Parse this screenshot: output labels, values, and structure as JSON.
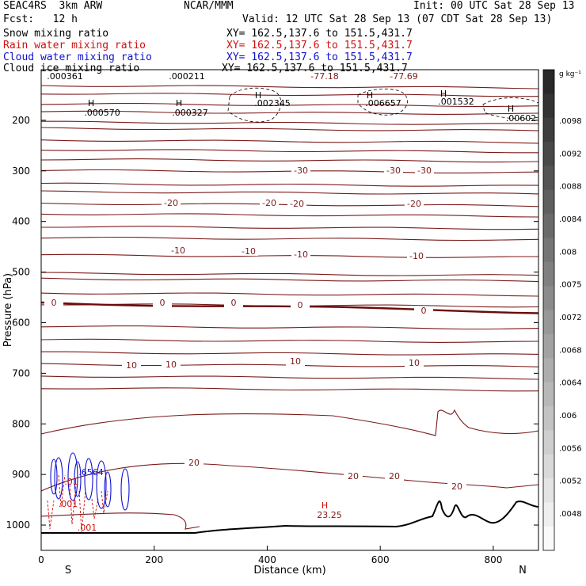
{
  "header": {
    "model": "SEAC4RS  3km ARW",
    "org": "NCAR/MMM",
    "init": "Init: 00 UTC Sat 28 Sep 13",
    "fcst": "Fcst:   12 h",
    "valid": "Valid: 12 UTC Sat 28 Sep 13 (07 CDT Sat 28 Sep 13)",
    "fields": [
      {
        "name": "Snow mixing ratio",
        "xy": "XY= 162.5,137.6 to 151.5,431.7",
        "color": "#000000"
      },
      {
        "name": "Rain water mixing ratio",
        "xy": "XY= 162.5,137.6 to 151.5,431.7",
        "color": "#d01010"
      },
      {
        "name": "Cloud water mixing ratio",
        "xy": "XY= 162.5,137.6 to 151.5,431.7",
        "color": "#1010d0"
      },
      {
        "name": "Cloud ice mixing ratio",
        "xy": "XY= 162.5,137.6 to 151.5,431.7",
        "color": "#000000"
      }
    ]
  },
  "chart_data": {
    "type": "contour cross-section",
    "xlabel": "Distance (km)",
    "ylabel": "Pressure (hPa)",
    "xlim": [
      0,
      880
    ],
    "ylim": [
      1050,
      100
    ],
    "x_ticks": [
      "0",
      "200",
      "400",
      "600",
      "800"
    ],
    "y_ticks": [
      "200",
      "300",
      "400",
      "500",
      "600",
      "700",
      "800",
      "900",
      "1000"
    ],
    "x_end_labels": {
      "left": "S",
      "right": "N"
    },
    "colorbar": {
      "units": "g kg⁻¹",
      "labels": [
        ".0098",
        ".0092",
        ".0088",
        ".0084",
        ".008",
        ".0075",
        ".0072",
        ".0068",
        ".0064",
        ".006",
        ".0056",
        ".0052",
        ".0048"
      ]
    },
    "temperature_contour_labels": [
      "-77.18",
      "-77.69",
      "-30",
      "-20",
      "-10",
      "0",
      "10",
      "20",
      "23.25"
    ],
    "maxima_labels": [
      ".000361",
      ".000211",
      ".000570",
      ".000327",
      ".002345",
      ".006657",
      ".001532",
      ".00602",
      ".6564",
      ".001",
      ".01",
      ".001",
      "H"
    ],
    "colors": {
      "temperature": "#7a1a1a",
      "freezing_level": "#6a0c0c",
      "terrain": "#000000",
      "rain": "#d01010",
      "cloud_water": "#1010d0"
    }
  }
}
